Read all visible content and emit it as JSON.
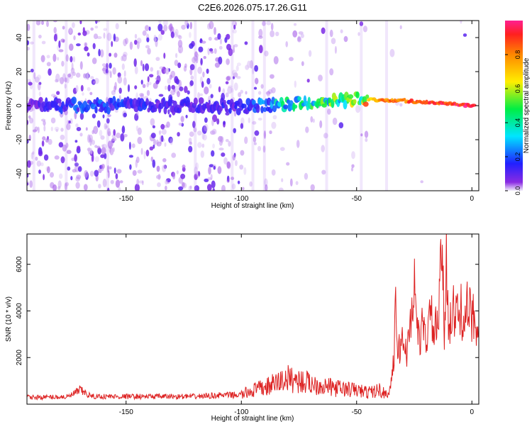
{
  "title": "C2E6.2026.075.17.26.G11",
  "colors": {
    "signal": "#dd2222",
    "axis": "#000000",
    "spectrogram_low": "#6a1de0"
  },
  "chart_data": [
    {
      "type": "heatmap",
      "xlabel": "Height of straight line (km)",
      "ylabel": "Frequency (Hz)",
      "xlim": [
        -193,
        3
      ],
      "ylim": [
        -50,
        50
      ],
      "xticks": [
        -150,
        -100,
        -50,
        0
      ],
      "yticks": [
        -40,
        -20,
        0,
        20,
        40
      ],
      "grid": false,
      "colorbar": {
        "label": "Normalized spectral amplitude",
        "range": [
          0,
          1
        ],
        "ticks": [
          0.0,
          0.2,
          0.4,
          0.6,
          0.8
        ]
      },
      "ridge": {
        "x": [
          -190,
          -170,
          -150,
          -130,
          -110,
          -100,
          -90,
          -80,
          -70,
          -60,
          -50,
          -40,
          -30,
          -20,
          -10,
          0
        ],
        "y": [
          1,
          0,
          0,
          0,
          0,
          -1,
          0,
          1,
          2,
          3,
          4,
          3,
          3,
          2,
          1,
          0
        ],
        "amplitude": [
          0.08,
          0.18,
          0.15,
          0.1,
          0.12,
          0.12,
          0.25,
          0.35,
          0.4,
          0.45,
          0.5,
          0.85,
          0.88,
          0.92,
          0.95,
          1.0
        ]
      }
    },
    {
      "type": "line",
      "xlabel": "Height of straight line (km)",
      "ylabel": "SNR (10 * v/v)",
      "xlim": [
        -193,
        3
      ],
      "ylim": [
        0,
        7300
      ],
      "xticks": [
        -150,
        -100,
        -50,
        0
      ],
      "yticks": [
        2000,
        4000,
        6000
      ],
      "grid": false,
      "series": [
        {
          "x": [
            -193,
            -185,
            -175,
            -170,
            -165,
            -160,
            -150,
            -140,
            -130,
            -120,
            -110,
            -100,
            -95,
            -90,
            -85,
            -80,
            -75,
            -70,
            -65,
            -60,
            -55,
            -50,
            -45,
            -40,
            -36,
            -34,
            -33,
            -32,
            -30,
            -28,
            -25,
            -23,
            -22,
            -20,
            -18,
            -16,
            -14,
            -13,
            -12,
            -11,
            -10,
            -8,
            -6,
            -4,
            -2,
            0,
            3
          ],
          "y": [
            300,
            300,
            320,
            600,
            330,
            330,
            330,
            330,
            330,
            330,
            380,
            400,
            600,
            700,
            900,
            1100,
            1000,
            900,
            800,
            700,
            650,
            600,
            500,
            600,
            400,
            1700,
            4100,
            2200,
            2800,
            2200,
            5200,
            2600,
            3300,
            2800,
            3800,
            3000,
            4200,
            7300,
            2800,
            6400,
            3500,
            3900,
            3800,
            4000,
            4000,
            3700,
            3600
          ]
        }
      ]
    }
  ]
}
